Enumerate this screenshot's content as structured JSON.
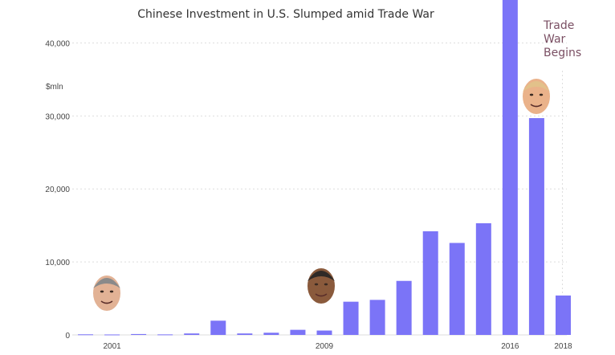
{
  "chart_data": {
    "type": "bar",
    "title": "Chinese Investment in U.S. Slumped amid Trade War",
    "ylabel": "$mln",
    "xlabel": "",
    "ylim": [
      0,
      45000
    ],
    "yticks": [
      0,
      10000,
      20000,
      30000,
      40000
    ],
    "ytick_labels": [
      "0",
      "10,000",
      "20,000",
      "30,000",
      "40,000"
    ],
    "xtick_labels": [
      {
        "year": 2001,
        "label": "2001"
      },
      {
        "year": 2009,
        "label": "2009"
      },
      {
        "year": 2016,
        "label": "2016"
      },
      {
        "year": 2018,
        "label": "2018"
      }
    ],
    "grid": true,
    "bar_color": "#7b74f7",
    "categories": [
      2000,
      2001,
      2002,
      2003,
      2004,
      2005,
      2006,
      2007,
      2008,
      2009,
      2010,
      2011,
      2012,
      2013,
      2014,
      2015,
      2016,
      2017,
      2018
    ],
    "values": [
      80,
      60,
      120,
      70,
      200,
      1950,
      200,
      300,
      700,
      600,
      4550,
      4800,
      7400,
      14200,
      12600,
      15300,
      46400,
      29700,
      5400
    ],
    "annotations": [
      {
        "text": "Trade War Begins",
        "lines": [
          "Trade",
          "War",
          "Begins"
        ],
        "color": "#7a4f63"
      }
    ],
    "portraits": [
      {
        "name": "bush-portrait",
        "year": 2001
      },
      {
        "name": "obama-portrait",
        "year": 2009
      },
      {
        "name": "trump-portrait",
        "year": 2017
      }
    ]
  }
}
